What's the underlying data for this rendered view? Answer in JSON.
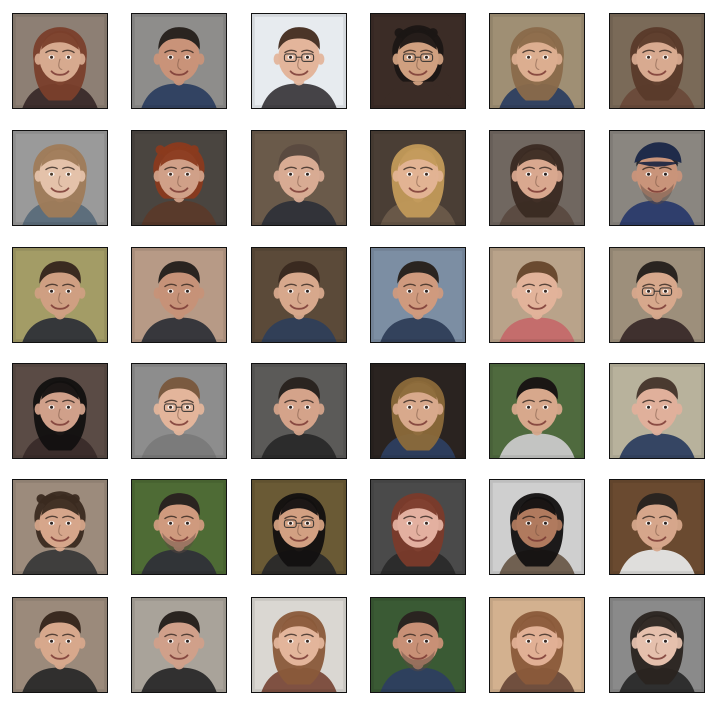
{
  "grid": {
    "rows": 6,
    "cols": 6,
    "tiles": [
      {
        "bg": "#8d7f74",
        "skin": "#d7aa8f",
        "hair": "#7a3f2b",
        "shirt": "#3a2b2a",
        "eyes": "#3b2a22",
        "hairStyle": "long",
        "glasses": false,
        "beard": false,
        "cap": false
      },
      {
        "bg": "#8e8d8b",
        "skin": "#c99379",
        "hair": "#2a2420",
        "shirt": "#2d3f60",
        "eyes": "#2b221f",
        "hairStyle": "short",
        "glasses": false,
        "beard": false,
        "cap": false
      },
      {
        "bg": "#e7ebef",
        "skin": "#e3b59b",
        "hair": "#4b3528",
        "shirt": "#3c3a3d",
        "eyes": "#2b221f",
        "hairStyle": "short",
        "glasses": true,
        "beard": false,
        "cap": false
      },
      {
        "bg": "#3b2c26",
        "skin": "#d0a080",
        "hair": "#1b1614",
        "shirt": "#3b2c26",
        "eyes": "#2b221f",
        "hairStyle": "curly",
        "glasses": true,
        "beard": false,
        "cap": false
      },
      {
        "bg": "#9f8f74",
        "skin": "#dcae90",
        "hair": "#8a6a4a",
        "shirt": "#2d3f60",
        "eyes": "#3b2a22",
        "hairStyle": "long",
        "glasses": false,
        "beard": false,
        "cap": false
      },
      {
        "bg": "#7a6a58",
        "skin": "#d8aa90",
        "hair": "#5a3a2a",
        "shirt": "#6a4a3a",
        "eyes": "#3b2a22",
        "hairStyle": "long",
        "glasses": false,
        "beard": false,
        "cap": false
      },
      {
        "bg": "#9a9a9a",
        "skin": "#e4c2aa",
        "hair": "#9f7b58",
        "shirt": "#5a6b7a",
        "eyes": "#4b3a2a",
        "hairStyle": "long",
        "glasses": false,
        "beard": false,
        "cap": false
      },
      {
        "bg": "#4a4540",
        "skin": "#d0a088",
        "hair": "#8a3a1e",
        "shirt": "#5a3a2a",
        "eyes": "#3b2a22",
        "hairStyle": "curly",
        "glasses": false,
        "beard": false,
        "cap": false
      },
      {
        "bg": "#6a5a4a",
        "skin": "#d8ab93",
        "hair": "#5a4a40",
        "shirt": "#2f3238",
        "eyes": "#2b221f",
        "hairStyle": "short",
        "glasses": false,
        "beard": false,
        "cap": false
      },
      {
        "bg": "#4a3e35",
        "skin": "#e2b393",
        "hair": "#c29a5a",
        "shirt": "#6a5a4a",
        "eyes": "#3b2a22",
        "hairStyle": "long",
        "glasses": false,
        "beard": false,
        "cap": false
      },
      {
        "bg": "#706760",
        "skin": "#d9a88f",
        "hair": "#3a2a22",
        "shirt": "#5a4a40",
        "eyes": "#2b221f",
        "hairStyle": "long",
        "glasses": false,
        "beard": false,
        "cap": false
      },
      {
        "bg": "#8a8680",
        "skin": "#c9947a",
        "hair": "#2a2a2a",
        "shirt": "#2a3a6a",
        "eyes": "#2b221f",
        "hairStyle": "short",
        "glasses": false,
        "beard": true,
        "cap": true
      },
      {
        "bg": "#a39c66",
        "skin": "#cf9f82",
        "hair": "#3a2a20",
        "shirt": "#2f3238",
        "eyes": "#2b221f",
        "hairStyle": "short",
        "glasses": false,
        "beard": false,
        "cap": false
      },
      {
        "bg": "#b79a86",
        "skin": "#c69278",
        "hair": "#2a2420",
        "shirt": "#2f3238",
        "eyes": "#2b221f",
        "hairStyle": "short",
        "glasses": false,
        "beard": false,
        "cap": false
      },
      {
        "bg": "#5b4a39",
        "skin": "#d7a88c",
        "hair": "#3a2a20",
        "shirt": "#2f3e58",
        "eyes": "#2b221f",
        "hairStyle": "short",
        "glasses": false,
        "beard": false,
        "cap": false
      },
      {
        "bg": "#7c8ea3",
        "skin": "#cf9a7e",
        "hair": "#2a2420",
        "shirt": "#2f3e58",
        "eyes": "#2b221f",
        "hairStyle": "short",
        "glasses": false,
        "beard": false,
        "cap": false
      },
      {
        "bg": "#b9a38a",
        "skin": "#e2b39a",
        "hair": "#6a4a30",
        "shirt": "#c46a6a",
        "eyes": "#3b2a22",
        "hairStyle": "short",
        "glasses": false,
        "beard": false,
        "cap": false
      },
      {
        "bg": "#9d8f7b",
        "skin": "#d7a88c",
        "hair": "#2a2420",
        "shirt": "#3a2b2a",
        "eyes": "#2b221f",
        "hairStyle": "short",
        "glasses": true,
        "beard": false,
        "cap": false
      },
      {
        "bg": "#5a4b45",
        "skin": "#d0a08a",
        "hair": "#121010",
        "shirt": "#3a2b2a",
        "eyes": "#2b221f",
        "hairStyle": "long",
        "glasses": false,
        "beard": false,
        "cap": false
      },
      {
        "bg": "#8d8d8d",
        "skin": "#e3b59b",
        "hair": "#7a5a40",
        "shirt": "#7a7a7a",
        "eyes": "#3b2a22",
        "hairStyle": "short",
        "glasses": true,
        "beard": false,
        "cap": false
      },
      {
        "bg": "#5b5a58",
        "skin": "#d4a38a",
        "hair": "#2a2420",
        "shirt": "#2a2a2a",
        "eyes": "#2b221f",
        "hairStyle": "short",
        "glasses": false,
        "beard": false,
        "cap": false
      },
      {
        "bg": "#2a2320",
        "skin": "#d8a98c",
        "hair": "#8b6a3a",
        "shirt": "#2d3f60",
        "eyes": "#3b2a22",
        "hairStyle": "long",
        "glasses": false,
        "beard": false,
        "cap": false
      },
      {
        "bg": "#4f6a3e",
        "skin": "#d7a88c",
        "hair": "#1a1614",
        "shirt": "#c9c9c9",
        "eyes": "#2b221f",
        "hairStyle": "short",
        "glasses": false,
        "beard": false,
        "cap": false
      },
      {
        "bg": "#b8b29c",
        "skin": "#e0b09b",
        "hair": "#4a3a30",
        "shirt": "#2d3f60",
        "eyes": "#2b221f",
        "hairStyle": "short",
        "glasses": false,
        "beard": false,
        "cap": false
      },
      {
        "bg": "#9c8b7c",
        "skin": "#d6a68b",
        "hair": "#3a2a20",
        "shirt": "#3a3a3a",
        "eyes": "#2b221f",
        "hairStyle": "curly",
        "glasses": false,
        "beard": false,
        "cap": false
      },
      {
        "bg": "#4e6b35",
        "skin": "#cf9a7e",
        "hair": "#2a2420",
        "shirt": "#2f3238",
        "eyes": "#2b221f",
        "hairStyle": "short",
        "glasses": false,
        "beard": true,
        "cap": false
      },
      {
        "bg": "#6a5a35",
        "skin": "#d2a082",
        "hair": "#121010",
        "shirt": "#2a2a2a",
        "eyes": "#2b221f",
        "hairStyle": "long",
        "glasses": true,
        "beard": false,
        "cap": false
      },
      {
        "bg": "#4a4a4a",
        "skin": "#e3b0a0",
        "hair": "#7a3a2a",
        "shirt": "#2a2a2a",
        "eyes": "#3b2a22",
        "hairStyle": "long",
        "glasses": false,
        "beard": false,
        "cap": false
      },
      {
        "bg": "#cfcfcf",
        "skin": "#b07a5e",
        "hair": "#121010",
        "shirt": "#6a5a4a",
        "eyes": "#2b221f",
        "hairStyle": "long",
        "glasses": false,
        "beard": false,
        "cap": false
      },
      {
        "bg": "#6a4a30",
        "skin": "#d6a68b",
        "hair": "#2a2420",
        "shirt": "#e6e6e6",
        "eyes": "#2b221f",
        "hairStyle": "short",
        "glasses": false,
        "beard": false,
        "cap": false
      },
      {
        "bg": "#9b8a7b",
        "skin": "#d7a88c",
        "hair": "#3a2a20",
        "shirt": "#2a2a2a",
        "eyes": "#2b221f",
        "hairStyle": "short",
        "glasses": false,
        "beard": false,
        "cap": false
      },
      {
        "bg": "#a9a39a",
        "skin": "#d0a08a",
        "hair": "#2a2420",
        "shirt": "#2a2a2a",
        "eyes": "#2b221f",
        "hairStyle": "short",
        "glasses": false,
        "beard": false,
        "cap": false
      },
      {
        "bg": "#dad7d2",
        "skin": "#e3b59b",
        "hair": "#8a5a3a",
        "shirt": "#7a4a3a",
        "eyes": "#3b2a22",
        "hairStyle": "long",
        "glasses": false,
        "beard": false,
        "cap": false
      },
      {
        "bg": "#3a5a34",
        "skin": "#c89076",
        "hair": "#2a2420",
        "shirt": "#2d3f60",
        "eyes": "#2b221f",
        "hairStyle": "short",
        "glasses": false,
        "beard": true,
        "cap": false
      },
      {
        "bg": "#d3b18f",
        "skin": "#e1b095",
        "hair": "#8a5a3a",
        "shirt": "#6a4a3a",
        "eyes": "#3b2a22",
        "hairStyle": "long",
        "glasses": false,
        "beard": false,
        "cap": false
      },
      {
        "bg": "#8a8a8a",
        "skin": "#e5c0ad",
        "hair": "#2a2420",
        "shirt": "#2a2a2a",
        "eyes": "#2b221f",
        "hairStyle": "long",
        "glasses": false,
        "beard": false,
        "cap": false
      }
    ]
  }
}
